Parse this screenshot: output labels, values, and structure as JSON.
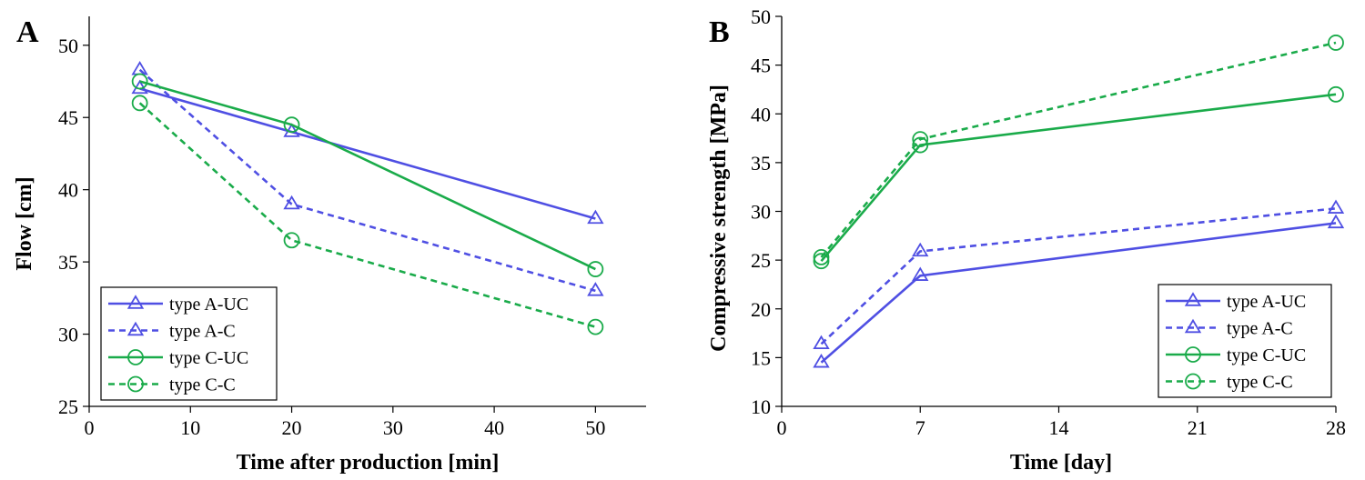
{
  "chart_data": [
    {
      "panel_label": "A",
      "type": "line",
      "xlabel": "Time after production [min]",
      "ylabel": "Flow [cm]",
      "xlim": [
        0,
        55
      ],
      "ylim": [
        25,
        52
      ],
      "xticks": [
        0,
        10,
        20,
        30,
        40,
        50
      ],
      "yticks": [
        25,
        30,
        35,
        40,
        45,
        50
      ],
      "x": [
        5,
        20,
        50
      ],
      "legend_position": "bottom-left",
      "series": [
        {
          "name": "type A-UC",
          "values": [
            47.0,
            44.0,
            38.0
          ],
          "color": "#4f4fe3",
          "dashed": false,
          "marker": "triangle"
        },
        {
          "name": "type A-C",
          "values": [
            48.3,
            39.0,
            33.0
          ],
          "color": "#4f4fe3",
          "dashed": true,
          "marker": "triangle"
        },
        {
          "name": "type C-UC",
          "values": [
            47.5,
            44.5,
            34.5
          ],
          "color": "#1aab4a",
          "dashed": false,
          "marker": "circle"
        },
        {
          "name": "type C-C",
          "values": [
            46.0,
            36.5,
            30.5
          ],
          "color": "#1aab4a",
          "dashed": true,
          "marker": "circle"
        }
      ]
    },
    {
      "panel_label": "B",
      "type": "line",
      "xlabel": "Time [day]",
      "ylabel": "Compressive strength [MPa]",
      "xlim": [
        0,
        28
      ],
      "ylim": [
        10,
        50
      ],
      "xticks": [
        0,
        7,
        14,
        21,
        28
      ],
      "yticks": [
        10,
        15,
        20,
        25,
        30,
        35,
        40,
        45,
        50
      ],
      "x": [
        2,
        7,
        28
      ],
      "legend_position": "bottom-right",
      "series": [
        {
          "name": "type A-UC",
          "values": [
            14.5,
            23.4,
            28.8
          ],
          "color": "#4f4fe3",
          "dashed": false,
          "marker": "triangle"
        },
        {
          "name": "type A-C",
          "values": [
            16.4,
            25.9,
            30.3
          ],
          "color": "#4f4fe3",
          "dashed": true,
          "marker": "triangle"
        },
        {
          "name": "type C-UC",
          "values": [
            24.9,
            36.8,
            42.0
          ],
          "color": "#1aab4a",
          "dashed": false,
          "marker": "circle"
        },
        {
          "name": "type C-C",
          "values": [
            25.3,
            37.4,
            47.3
          ],
          "color": "#1aab4a",
          "dashed": true,
          "marker": "circle"
        }
      ]
    }
  ]
}
